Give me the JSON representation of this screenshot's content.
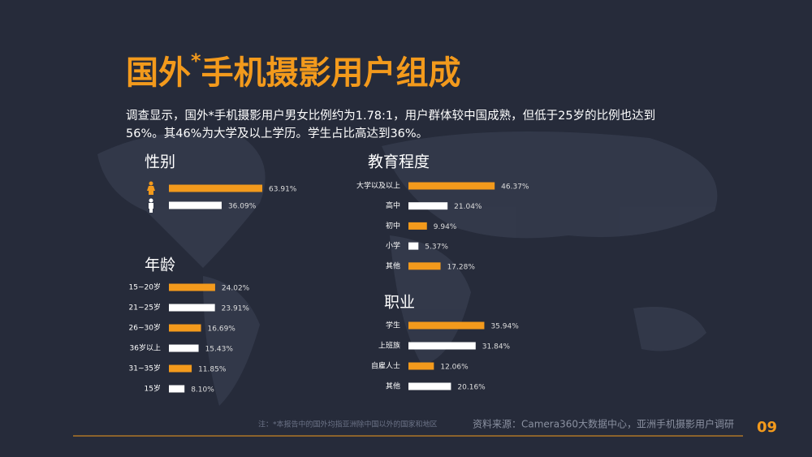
{
  "title": [
    "国外",
    "*",
    "手机摄影用户组成"
  ],
  "description": [
    "调查显示，国外*手机摄影用户男女比例约为1.78:1，用户群体较中国成熟，但低于25岁的比例也达到",
    "56%。其46%为大学及以上学历。学生占比高达到36%。"
  ],
  "note": "注：*本报告中的国外均指亚洲除中国以外的国家和地区",
  "source": "资料来源：Camera360大数据中心，亚洲手机摄影用户调研",
  "page_number": "09",
  "chart_data": [
    {
      "type": "bar",
      "title": "性别",
      "categories": [
        null,
        null
      ],
      "values": [
        63.91,
        36.09
      ],
      "value_labels": [
        "63.91%",
        "36.09%"
      ],
      "colors": [
        "#f39a1c",
        "#ffffff"
      ]
    },
    {
      "type": "bar",
      "title": "年龄",
      "categories": [
        "15~20岁",
        "21~25岁",
        "26~30岁",
        "36岁以上",
        "31~35岁",
        "15岁"
      ],
      "values": [
        24.02,
        23.91,
        16.69,
        15.43,
        11.85,
        8.1
      ],
      "value_labels": [
        "24.02%",
        "23.91%",
        "16.69%",
        "15.43%",
        "11.85%",
        "8.10%"
      ],
      "colors": [
        "#f39a1c",
        "#ffffff",
        "#f39a1c",
        "#ffffff",
        "#f39a1c",
        "#ffffff"
      ]
    },
    {
      "type": "bar",
      "title": "教育程度",
      "categories": [
        "大学以及以上",
        "高中",
        "初中",
        "小学",
        "其他"
      ],
      "values": [
        46.37,
        21.04,
        9.94,
        5.37,
        17.28
      ],
      "value_labels": [
        "46.37%",
        "21.04%",
        "9.94%",
        "5.37%",
        "17.28%"
      ],
      "colors": [
        "#f39a1c",
        "#ffffff",
        "#f39a1c",
        "#ffffff",
        "#f39a1c"
      ]
    },
    {
      "type": "bar",
      "title": "职业",
      "categories": [
        "学生",
        "上班族",
        "自雇人士",
        "其他"
      ],
      "values": [
        35.94,
        31.84,
        12.06,
        20.16
      ],
      "value_labels": [
        "35.94%",
        "31.84%",
        "12.06%",
        "20.16%"
      ],
      "colors": [
        "#f39a1c",
        "#ffffff",
        "#f39a1c",
        "#ffffff"
      ]
    }
  ]
}
